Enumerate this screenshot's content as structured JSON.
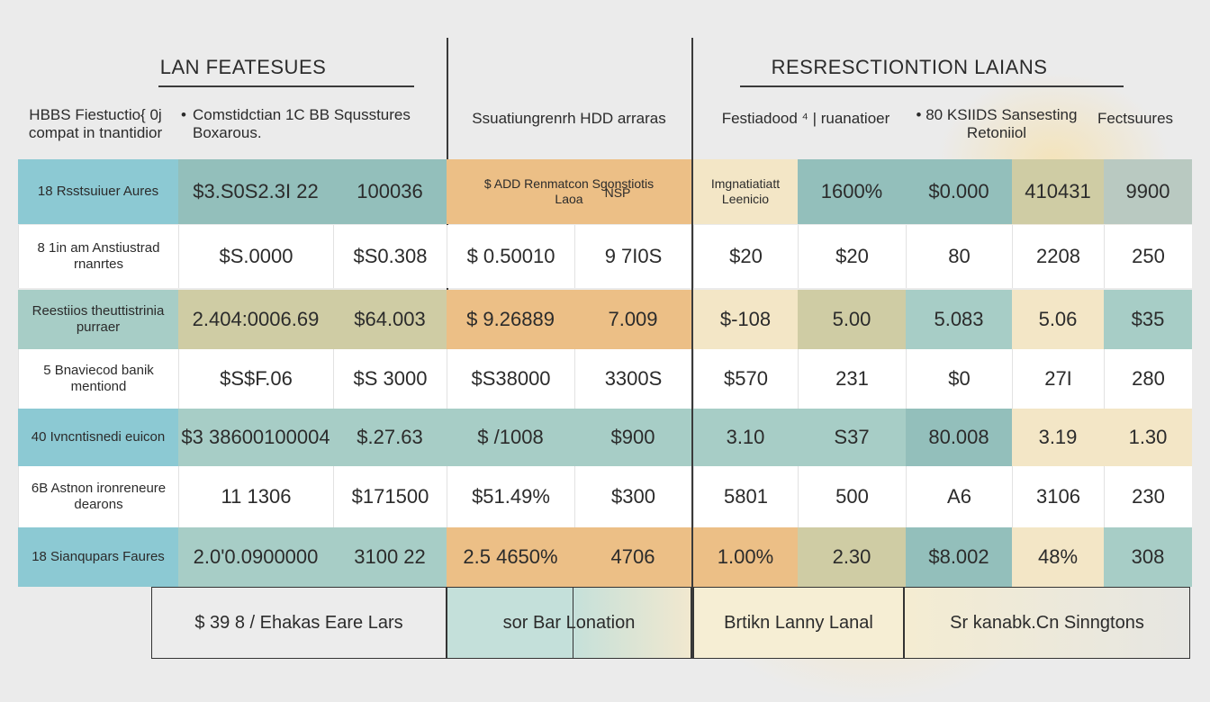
{
  "left": {
    "title": "LAN FEATESUES",
    "subs": [
      "HBBS Fiestuctio{ 0j\ncompat in tnantidior",
      "Comstidctian 1C BB Squsstures\nBoxarous.",
      "Ssuatiungrenrh  HDD arraras"
    ],
    "bullets": [
      "•",
      "•"
    ],
    "header": [
      "18  Rsstsuiuer Aures",
      "$3.S0S2.3I 22",
      "100036"
    ],
    "header_right": [
      "$ ADD Renmatcon Sgonstiotis\nLaoa",
      "NSP"
    ],
    "rows": [
      [
        "8 1in am Anstiustrad\nrnanrtes",
        "$S.0000",
        "$S0.308",
        "$ 0.50010",
        "9 7I0S"
      ],
      [
        "Reestiios theuttistrinia\npurraer",
        "2.404:0006.69",
        "$64.003",
        "$ 9.26889",
        "7.009"
      ],
      [
        "5 Bnaviecod banik\nmentiond",
        "$S$F.06",
        "$S 3000",
        "$S38000",
        "3300S"
      ],
      [
        "40 Ivncntisnedi euicon",
        "$3 38600100004",
        "$.27.63",
        "$ /1008",
        "$900"
      ],
      [
        "6B Astnon ironreneure\ndearons",
        "11 1306",
        "$171500",
        "$51.49%",
        "$300"
      ],
      [
        "18  Sianqupars Faures",
        "2.0'0.0900000",
        "3100 22",
        "2.5 4650%",
        "4706"
      ]
    ],
    "footer": [
      "$ 39   8 /  Ehakas Eare Lars",
      "sor Bar Lonation"
    ]
  },
  "right": {
    "title": "RESRESCTIONTION LAIANS",
    "subs": [
      "Festiadood  ⁴ | ruanatioer",
      "• 80 KSIIDS Sansesting\nRetoniiol",
      "Fectsuures"
    ],
    "header": [
      "Imgnatiatiatt\nLeenicio",
      "1600%",
      "$0.000",
      "410431",
      "9900"
    ],
    "rows": [
      [
        "$20",
        "$20",
        "80",
        "2208",
        "250"
      ],
      [
        "$-108",
        "5.00",
        "5.083",
        "5.06",
        "$35"
      ],
      [
        "$570",
        "231",
        "$0",
        "27I",
        "280"
      ],
      [
        "3.10",
        "S37",
        "80.008",
        "3.19",
        "1.30"
      ],
      [
        "5801",
        "500",
        "A6",
        "3106",
        "230"
      ],
      [
        "1.00%",
        "2.30",
        "$8.002",
        "48%",
        "308"
      ]
    ],
    "footer": [
      "Brtikn Lanny Lanal",
      "Sr kanabk.Cn Sinngtons"
    ]
  },
  "colors": {
    "teal": "#a7cdc6",
    "teal_dark": "#93bfbb",
    "cyan": "#8cc9d3",
    "olive": "#cfcca4",
    "orange": "#ecbf86",
    "cream": "#f3e6c6",
    "gray_teal": "#b9c9c1",
    "white": "#ffffff"
  }
}
